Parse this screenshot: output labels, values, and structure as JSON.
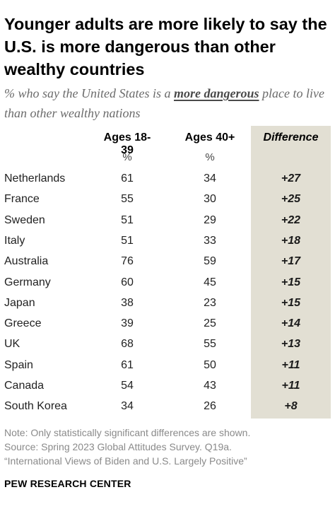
{
  "title": "Younger adults are more likely to say the U.S. is more dangerous than other wealthy countries",
  "subtitle": {
    "before": "% who say the United States is a ",
    "emphasis": "more dangerous",
    "after": " place to live than other wealthy nations"
  },
  "columns": {
    "young": {
      "label": "Ages 18-39",
      "unit": "%"
    },
    "old": {
      "label": "Ages 40+",
      "unit": "%"
    },
    "diff": {
      "label": "Difference"
    }
  },
  "chart_data": {
    "type": "table",
    "title": "Younger adults are more likely to say the U.S. is more dangerous than other wealthy countries",
    "subtitle": "% who say the United States is a more dangerous place to live than other wealthy nations",
    "columns": [
      "Ages 18-39",
      "Ages 40+",
      "Difference"
    ],
    "rows": [
      {
        "country": "Netherlands",
        "young": 61,
        "old": 34,
        "diff": "+27"
      },
      {
        "country": "France",
        "young": 55,
        "old": 30,
        "diff": "+25"
      },
      {
        "country": "Sweden",
        "young": 51,
        "old": 29,
        "diff": "+22"
      },
      {
        "country": "Italy",
        "young": 51,
        "old": 33,
        "diff": "+18"
      },
      {
        "country": "Australia",
        "young": 76,
        "old": 59,
        "diff": "+17"
      },
      {
        "country": "Germany",
        "young": 60,
        "old": 45,
        "diff": "+15"
      },
      {
        "country": "Japan",
        "young": 38,
        "old": 23,
        "diff": "+15"
      },
      {
        "country": "Greece",
        "young": 39,
        "old": 25,
        "diff": "+14"
      },
      {
        "country": "UK",
        "young": 68,
        "old": 55,
        "diff": "+13"
      },
      {
        "country": "Spain",
        "young": 61,
        "old": 50,
        "diff": "+11"
      },
      {
        "country": "Canada",
        "young": 54,
        "old": 43,
        "diff": "+11"
      },
      {
        "country": "South Korea",
        "young": 34,
        "old": 26,
        "diff": "+8"
      }
    ]
  },
  "notes": [
    "Note: Only statistically significant differences are shown.",
    "Source: Spring 2023 Global Attitudes Survey. Q19a.",
    "“International Views of Biden and U.S. Largely Positive”"
  ],
  "brand": "PEW RESEARCH CENTER",
  "colors": {
    "difference_band": "#e2dfd3",
    "subtitle_text": "#6b6b6b",
    "note_text": "#8a8a8a"
  }
}
